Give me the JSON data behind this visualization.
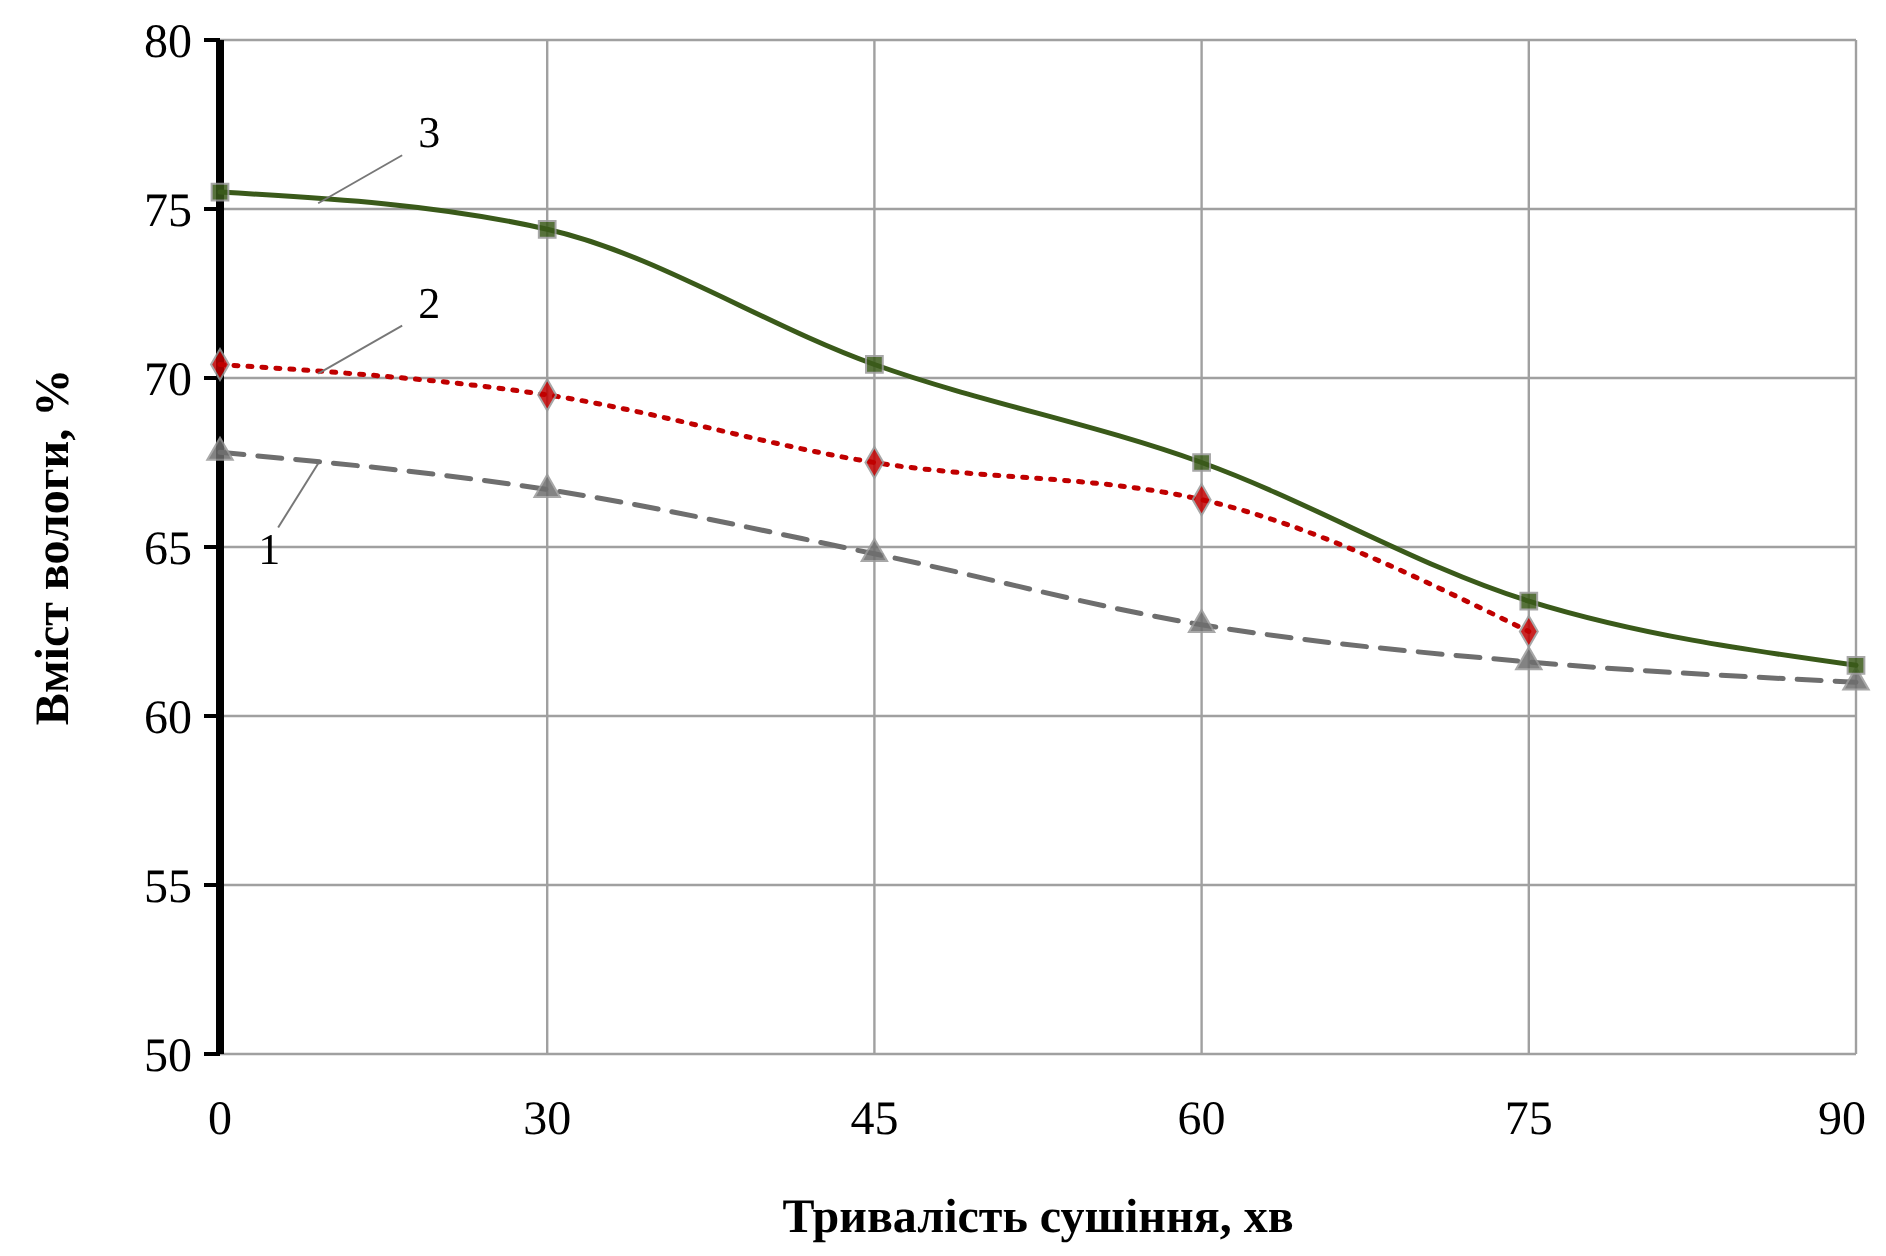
{
  "chart_data": {
    "type": "line",
    "xlabel": "Тривалість сушіння, хв",
    "ylabel": "Вміст вологи, %",
    "categories": [
      "0",
      "30",
      "45",
      "60",
      "75",
      "90"
    ],
    "ylim": [
      50,
      80
    ],
    "yticks": [
      50,
      55,
      60,
      65,
      70,
      75,
      80
    ],
    "grid": true,
    "series": [
      {
        "name": "1",
        "color": "#6e6e6e",
        "line_style": "dashed",
        "marker": "triangle",
        "values": [
          67.8,
          66.7,
          64.8,
          62.7,
          61.6,
          61.0
        ]
      },
      {
        "name": "2",
        "color": "#c00000",
        "line_style": "dotted",
        "marker": "diamond",
        "values": [
          70.4,
          69.5,
          67.5,
          66.4,
          62.5,
          null
        ]
      },
      {
        "name": "3",
        "color": "#3a5a1a",
        "line_style": "solid",
        "marker": "square",
        "values": [
          75.5,
          74.4,
          70.4,
          67.5,
          63.4,
          61.5
        ]
      }
    ]
  }
}
